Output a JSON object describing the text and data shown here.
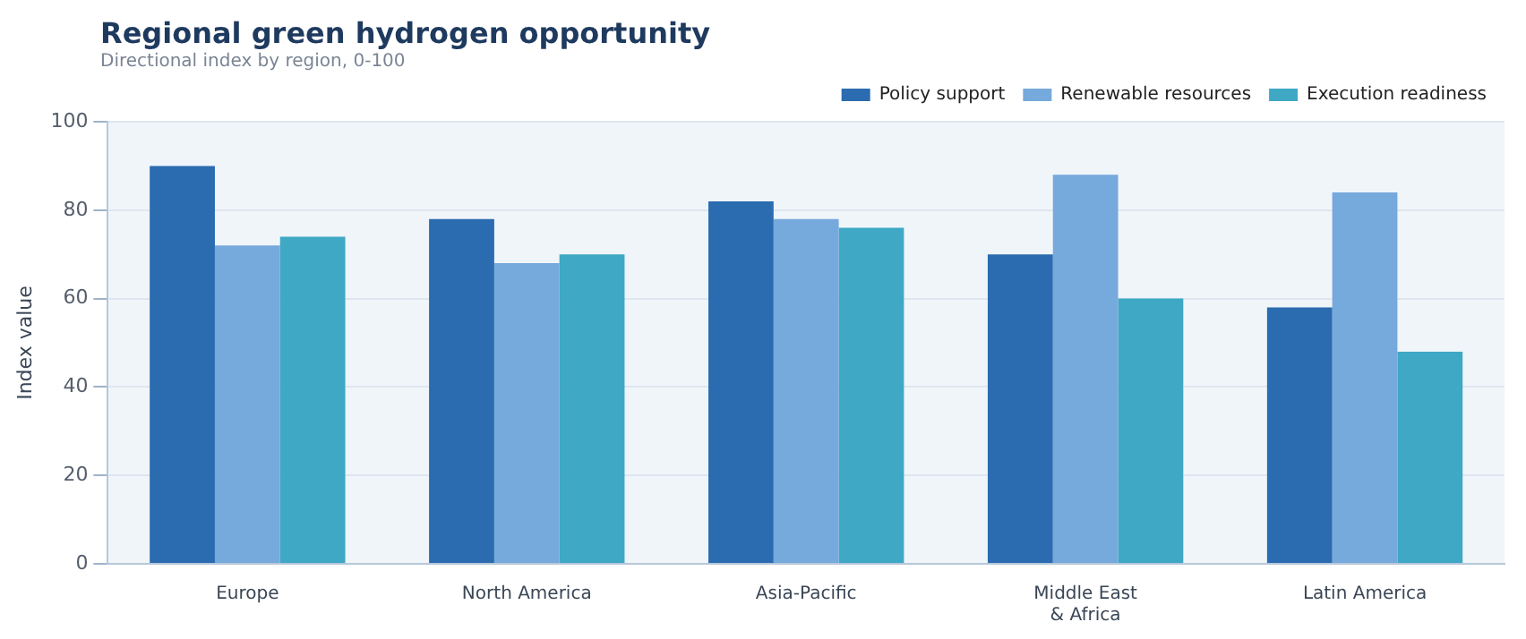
{
  "chart_data": {
    "type": "bar",
    "title": "Regional green hydrogen opportunity",
    "subtitle": "Directional index by region, 0-100",
    "ylabel": "Index value",
    "categories": [
      "Europe",
      "North America",
      "Asia-Pacific",
      "Middle East\n& Africa",
      "Latin America"
    ],
    "series": [
      {
        "name": "Policy support",
        "color": "#2b6cb0",
        "values": [
          90,
          78,
          82,
          70,
          58
        ]
      },
      {
        "name": "Renewable resources",
        "color": "#76a9dc",
        "values": [
          72,
          68,
          78,
          88,
          84
        ]
      },
      {
        "name": "Execution readiness",
        "color": "#3ea8c5",
        "values": [
          74,
          70,
          76,
          60,
          48
        ]
      }
    ],
    "ylim": [
      0,
      100
    ],
    "yticks": [
      0,
      20,
      40,
      60,
      80,
      100
    ],
    "grid": "y",
    "legend": "top right"
  }
}
